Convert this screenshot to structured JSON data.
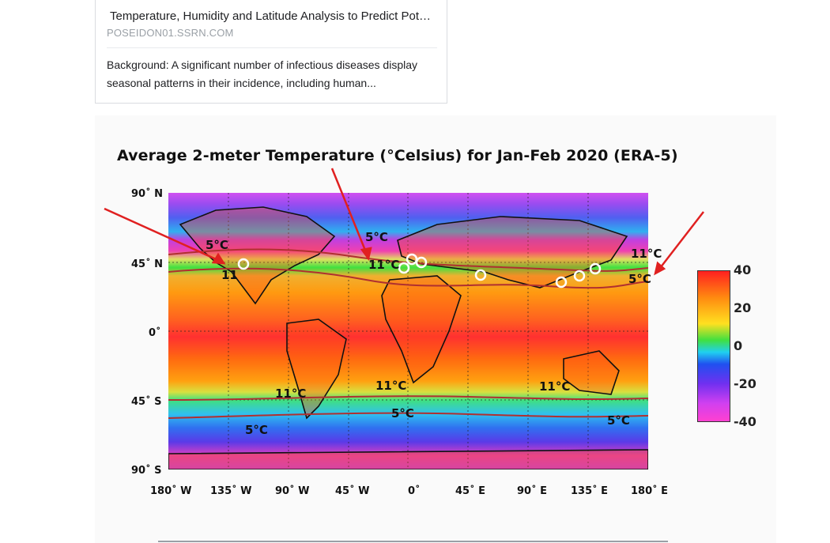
{
  "result_card": {
    "title": "Temperature, Humidity and Latitude Analysis to Predict Pot…",
    "source": "POSEIDON01.SSRN.COM",
    "snippet": "Background: A significant number of infectious diseases display seasonal patterns in their incidence, including human..."
  },
  "figure": {
    "title": "Average 2-meter Temperature (°Celsius) for Jan-Feb 2020 (ERA-5)",
    "lat_labels": [
      "90˚ N",
      "45˚ N",
      "0˚",
      "45˚ S",
      "90˚ S"
    ],
    "lon_labels": [
      "180˚ W",
      "135˚ W",
      "90˚ W",
      "45˚ W",
      "0˚",
      "45˚ E",
      "90˚ E",
      "135˚ E",
      "180˚ E"
    ],
    "contour_labels": [
      "5°C",
      "11",
      "5°C",
      "11°C",
      "5°C",
      "11°C",
      "11°C",
      "11°C",
      "11°C",
      "5°C",
      "5°C",
      "5°C"
    ],
    "colorbar_ticks": [
      "40",
      "20",
      "0",
      "-20",
      "-40"
    ],
    "colors": {
      "contour": "#b03030",
      "arrow": "#e02020",
      "highlight": "#ffffff"
    }
  }
}
